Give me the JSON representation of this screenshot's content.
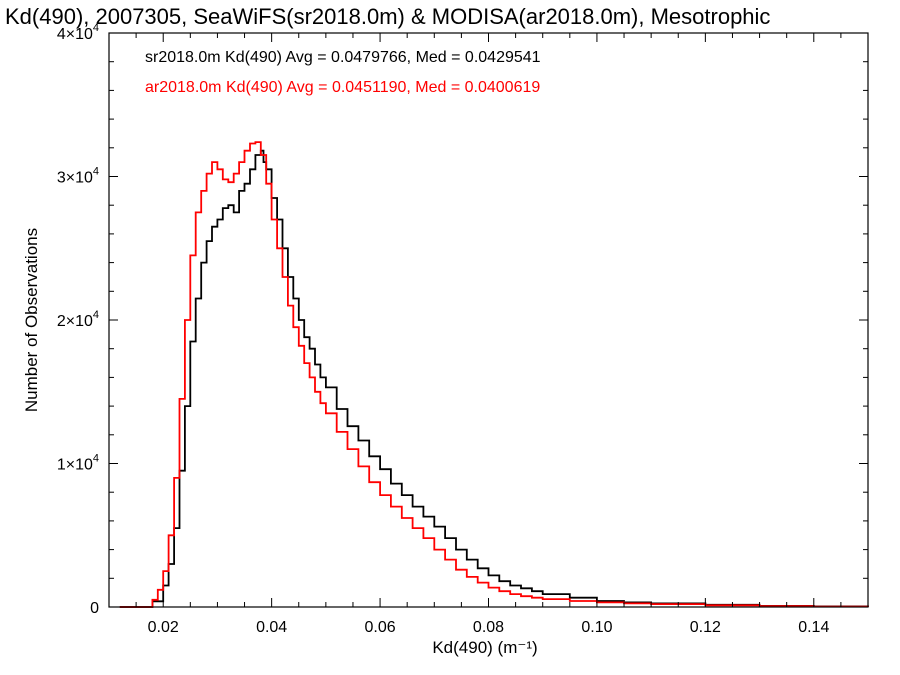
{
  "chart_data": {
    "type": "line",
    "title": "Kd(490), 2007305, SeaWiFS(sr2018.0m) & MODISA(ar2018.0m), Mesotrophic",
    "xlabel": "Kd(490) (m⁻¹)",
    "ylabel": "Number of Observations",
    "xlim": [
      0.01,
      0.15
    ],
    "ylim": [
      0,
      40000
    ],
    "x_ticks": [
      0.02,
      0.04,
      0.06,
      0.08,
      0.1,
      0.12,
      0.14
    ],
    "x_tick_labels": [
      "0.02",
      "0.04",
      "0.06",
      "0.08",
      "0.10",
      "0.12",
      "0.14"
    ],
    "y_ticks": [
      0,
      10000,
      20000,
      30000,
      40000
    ],
    "y_tick_labels": [
      {
        "base": "0",
        "exp": ""
      },
      {
        "base": "1×10",
        "exp": "4"
      },
      {
        "base": "2×10",
        "exp": "4"
      },
      {
        "base": "3×10",
        "exp": "4"
      },
      {
        "base": "4×10",
        "exp": "4"
      }
    ],
    "grid": false,
    "legend_position": "top-left",
    "series": [
      {
        "name": "sr2018.0m Kd(490) Avg = 0.0479766, Med = 0.0429541",
        "color": "#000000",
        "x": [
          0.012,
          0.016,
          0.018,
          0.02,
          0.021,
          0.022,
          0.023,
          0.024,
          0.025,
          0.026,
          0.027,
          0.028,
          0.029,
          0.03,
          0.031,
          0.032,
          0.033,
          0.034,
          0.035,
          0.036,
          0.037,
          0.038,
          0.0385,
          0.039,
          0.04,
          0.041,
          0.042,
          0.043,
          0.044,
          0.045,
          0.046,
          0.047,
          0.048,
          0.049,
          0.05,
          0.052,
          0.054,
          0.056,
          0.058,
          0.06,
          0.062,
          0.064,
          0.066,
          0.068,
          0.07,
          0.072,
          0.074,
          0.076,
          0.078,
          0.08,
          0.082,
          0.084,
          0.086,
          0.088,
          0.09,
          0.095,
          0.1,
          0.105,
          0.11,
          0.12,
          0.13,
          0.14,
          0.15
        ],
        "y": [
          0,
          0,
          400,
          1500,
          3000,
          5500,
          9500,
          14000,
          18500,
          21500,
          24000,
          25500,
          26500,
          27000,
          27800,
          28000,
          27500,
          29000,
          29500,
          30500,
          31500,
          31800,
          31000,
          30500,
          28500,
          27000,
          25000,
          23000,
          21500,
          20000,
          18800,
          18000,
          16900,
          16000,
          15300,
          13800,
          12600,
          11600,
          10500,
          9600,
          8600,
          7800,
          7000,
          6300,
          5600,
          4800,
          4000,
          3300,
          2700,
          2200,
          1800,
          1500,
          1300,
          1100,
          900,
          650,
          420,
          320,
          250,
          150,
          80,
          40,
          10
        ]
      },
      {
        "name": "ar2018.0m Kd(490) Avg = 0.0451190, Med = 0.0400619",
        "color": "#ff0000",
        "x": [
          0.012,
          0.016,
          0.018,
          0.019,
          0.02,
          0.021,
          0.022,
          0.023,
          0.024,
          0.025,
          0.026,
          0.027,
          0.028,
          0.029,
          0.03,
          0.031,
          0.032,
          0.033,
          0.034,
          0.035,
          0.036,
          0.037,
          0.038,
          0.039,
          0.04,
          0.041,
          0.042,
          0.043,
          0.044,
          0.045,
          0.046,
          0.047,
          0.048,
          0.049,
          0.05,
          0.052,
          0.054,
          0.056,
          0.058,
          0.06,
          0.062,
          0.064,
          0.066,
          0.068,
          0.07,
          0.072,
          0.074,
          0.076,
          0.078,
          0.08,
          0.082,
          0.084,
          0.086,
          0.088,
          0.09,
          0.095,
          0.1,
          0.105,
          0.11,
          0.12,
          0.13,
          0.14,
          0.15
        ],
        "y": [
          0,
          0,
          500,
          1200,
          2500,
          5000,
          9000,
          14500,
          20000,
          24500,
          27500,
          29000,
          30200,
          31000,
          30500,
          29800,
          29600,
          30200,
          31000,
          31800,
          32300,
          32400,
          31500,
          29500,
          27000,
          25000,
          23000,
          21000,
          19500,
          18200,
          17000,
          16000,
          15000,
          14200,
          13500,
          12200,
          11000,
          9800,
          8700,
          7800,
          7000,
          6200,
          5500,
          4800,
          4000,
          3300,
          2600,
          2100,
          1700,
          1350,
          1100,
          900,
          750,
          650,
          550,
          420,
          320,
          250,
          200,
          120,
          60,
          30,
          10
        ]
      }
    ]
  }
}
